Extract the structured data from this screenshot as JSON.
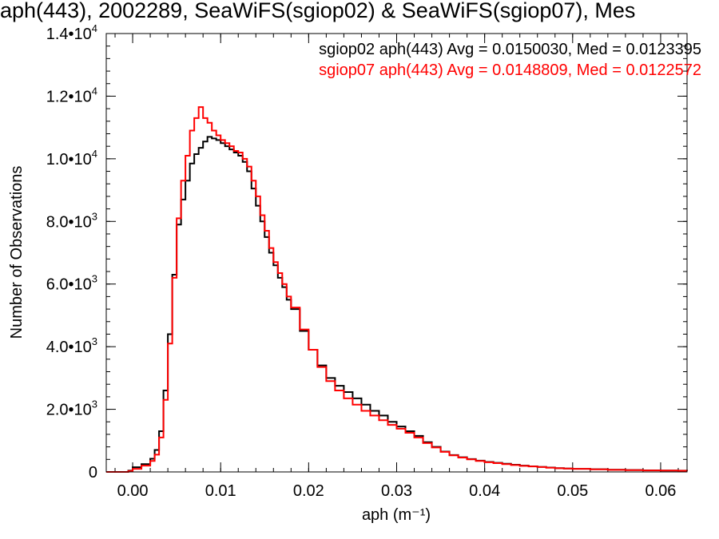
{
  "chart_data": {
    "type": "line",
    "title": "aph(443), 2002289, SeaWiFS(sgiop02) & SeaWiFS(sgiop07), Mes",
    "xlabel": "aph (m⁻¹)",
    "ylabel": "Number of Observations",
    "xlim": [
      -0.003,
      0.063
    ],
    "ylim": [
      0,
      14000
    ],
    "x_ticks": [
      {
        "value": 0.0,
        "label": "0.00"
      },
      {
        "value": 0.01,
        "label": "0.01"
      },
      {
        "value": 0.02,
        "label": "0.02"
      },
      {
        "value": 0.03,
        "label": "0.03"
      },
      {
        "value": 0.04,
        "label": "0.04"
      },
      {
        "value": 0.05,
        "label": "0.05"
      },
      {
        "value": 0.06,
        "label": "0.06"
      }
    ],
    "y_ticks": [
      {
        "value": 0,
        "mant": "0",
        "exp": ""
      },
      {
        "value": 2000,
        "mant": "2.0•10",
        "exp": "3"
      },
      {
        "value": 4000,
        "mant": "4.0•10",
        "exp": "3"
      },
      {
        "value": 6000,
        "mant": "6.0•10",
        "exp": "3"
      },
      {
        "value": 8000,
        "mant": "8.0•10",
        "exp": "3"
      },
      {
        "value": 10000,
        "mant": "1.0•10",
        "exp": "4"
      },
      {
        "value": 12000,
        "mant": "1.2•10",
        "exp": "4"
      },
      {
        "value": 14000,
        "mant": "1.4•10",
        "exp": "4"
      }
    ],
    "x_minor_step": 0.002,
    "y_minor_step": 400,
    "legend_placement": "top-right",
    "series": [
      {
        "name": "sgiop02",
        "label": "sgiop02 aph(443) Avg = 0.0150030, Med = 0.0123395",
        "color": "#000000",
        "points": [
          [
            -0.003,
            0
          ],
          [
            -0.0015,
            0
          ],
          [
            -0.0005,
            40
          ],
          [
            0.0,
            150
          ],
          [
            0.001,
            250
          ],
          [
            0.002,
            420
          ],
          [
            0.0025,
            700
          ],
          [
            0.003,
            1300
          ],
          [
            0.0035,
            2600
          ],
          [
            0.004,
            4400
          ],
          [
            0.0045,
            6300
          ],
          [
            0.005,
            7900
          ],
          [
            0.0055,
            8700
          ],
          [
            0.006,
            9300
          ],
          [
            0.0065,
            9850
          ],
          [
            0.007,
            10150
          ],
          [
            0.0075,
            10350
          ],
          [
            0.008,
            10550
          ],
          [
            0.0085,
            10700
          ],
          [
            0.009,
            10650
          ],
          [
            0.0095,
            10600
          ],
          [
            0.01,
            10500
          ],
          [
            0.0105,
            10400
          ],
          [
            0.011,
            10300
          ],
          [
            0.0115,
            10200
          ],
          [
            0.012,
            10100
          ],
          [
            0.0125,
            9900
          ],
          [
            0.013,
            9600
          ],
          [
            0.0135,
            9050
          ],
          [
            0.014,
            8500
          ],
          [
            0.0145,
            8000
          ],
          [
            0.015,
            7500
          ],
          [
            0.0155,
            7000
          ],
          [
            0.016,
            6600
          ],
          [
            0.0165,
            6200
          ],
          [
            0.017,
            5900
          ],
          [
            0.0175,
            5500
          ],
          [
            0.018,
            5200
          ],
          [
            0.019,
            4500
          ],
          [
            0.02,
            3900
          ],
          [
            0.021,
            3400
          ],
          [
            0.022,
            3000
          ],
          [
            0.023,
            2750
          ],
          [
            0.024,
            2550
          ],
          [
            0.025,
            2350
          ],
          [
            0.026,
            2150
          ],
          [
            0.027,
            1950
          ],
          [
            0.028,
            1800
          ],
          [
            0.029,
            1600
          ],
          [
            0.03,
            1450
          ],
          [
            0.031,
            1300
          ],
          [
            0.032,
            1150
          ],
          [
            0.033,
            950
          ],
          [
            0.034,
            800
          ],
          [
            0.035,
            650
          ],
          [
            0.036,
            540
          ],
          [
            0.037,
            470
          ],
          [
            0.038,
            410
          ],
          [
            0.039,
            360
          ],
          [
            0.04,
            320
          ],
          [
            0.041,
            290
          ],
          [
            0.042,
            260
          ],
          [
            0.043,
            230
          ],
          [
            0.044,
            200
          ],
          [
            0.045,
            180
          ],
          [
            0.046,
            160
          ],
          [
            0.047,
            140
          ],
          [
            0.048,
            120
          ],
          [
            0.049,
            110
          ],
          [
            0.05,
            100
          ],
          [
            0.052,
            85
          ],
          [
            0.054,
            70
          ],
          [
            0.056,
            60
          ],
          [
            0.058,
            50
          ],
          [
            0.06,
            45
          ],
          [
            0.062,
            40
          ],
          [
            0.063,
            35
          ]
        ]
      },
      {
        "name": "sgiop07",
        "label": "sgiop07 aph(443) Avg = 0.0148809, Med = 0.0122572",
        "color": "#ff0000",
        "points": [
          [
            -0.003,
            0
          ],
          [
            -0.0015,
            0
          ],
          [
            -0.0005,
            30
          ],
          [
            0.0,
            100
          ],
          [
            0.001,
            200
          ],
          [
            0.002,
            350
          ],
          [
            0.0025,
            550
          ],
          [
            0.003,
            1100
          ],
          [
            0.0035,
            2300
          ],
          [
            0.004,
            4100
          ],
          [
            0.0045,
            6200
          ],
          [
            0.005,
            8100
          ],
          [
            0.0055,
            9300
          ],
          [
            0.006,
            10100
          ],
          [
            0.0065,
            10900
          ],
          [
            0.007,
            11300
          ],
          [
            0.0075,
            11650
          ],
          [
            0.008,
            11300
          ],
          [
            0.0085,
            11150
          ],
          [
            0.009,
            10900
          ],
          [
            0.0095,
            10750
          ],
          [
            0.01,
            10600
          ],
          [
            0.0105,
            10500
          ],
          [
            0.011,
            10400
          ],
          [
            0.0115,
            10250
          ],
          [
            0.012,
            10200
          ],
          [
            0.0125,
            10000
          ],
          [
            0.013,
            9750
          ],
          [
            0.0135,
            9300
          ],
          [
            0.014,
            8800
          ],
          [
            0.0145,
            8200
          ],
          [
            0.015,
            7700
          ],
          [
            0.0155,
            7150
          ],
          [
            0.016,
            6700
          ],
          [
            0.0165,
            6350
          ],
          [
            0.017,
            6000
          ],
          [
            0.0175,
            5600
          ],
          [
            0.018,
            5250
          ],
          [
            0.019,
            4550
          ],
          [
            0.02,
            3900
          ],
          [
            0.021,
            3350
          ],
          [
            0.022,
            2900
          ],
          [
            0.023,
            2600
          ],
          [
            0.024,
            2350
          ],
          [
            0.025,
            2150
          ],
          [
            0.026,
            1950
          ],
          [
            0.027,
            1800
          ],
          [
            0.028,
            1650
          ],
          [
            0.029,
            1500
          ],
          [
            0.03,
            1380
          ],
          [
            0.031,
            1250
          ],
          [
            0.032,
            1100
          ],
          [
            0.033,
            920
          ],
          [
            0.034,
            780
          ],
          [
            0.035,
            640
          ],
          [
            0.036,
            530
          ],
          [
            0.037,
            460
          ],
          [
            0.038,
            400
          ],
          [
            0.039,
            350
          ],
          [
            0.04,
            310
          ],
          [
            0.041,
            280
          ],
          [
            0.042,
            250
          ],
          [
            0.043,
            220
          ],
          [
            0.044,
            195
          ],
          [
            0.045,
            175
          ],
          [
            0.046,
            155
          ],
          [
            0.047,
            135
          ],
          [
            0.048,
            118
          ],
          [
            0.049,
            108
          ],
          [
            0.05,
            98
          ],
          [
            0.052,
            83
          ],
          [
            0.054,
            68
          ],
          [
            0.056,
            58
          ],
          [
            0.058,
            48
          ],
          [
            0.06,
            43
          ],
          [
            0.062,
            38
          ],
          [
            0.063,
            33
          ]
        ]
      }
    ]
  }
}
